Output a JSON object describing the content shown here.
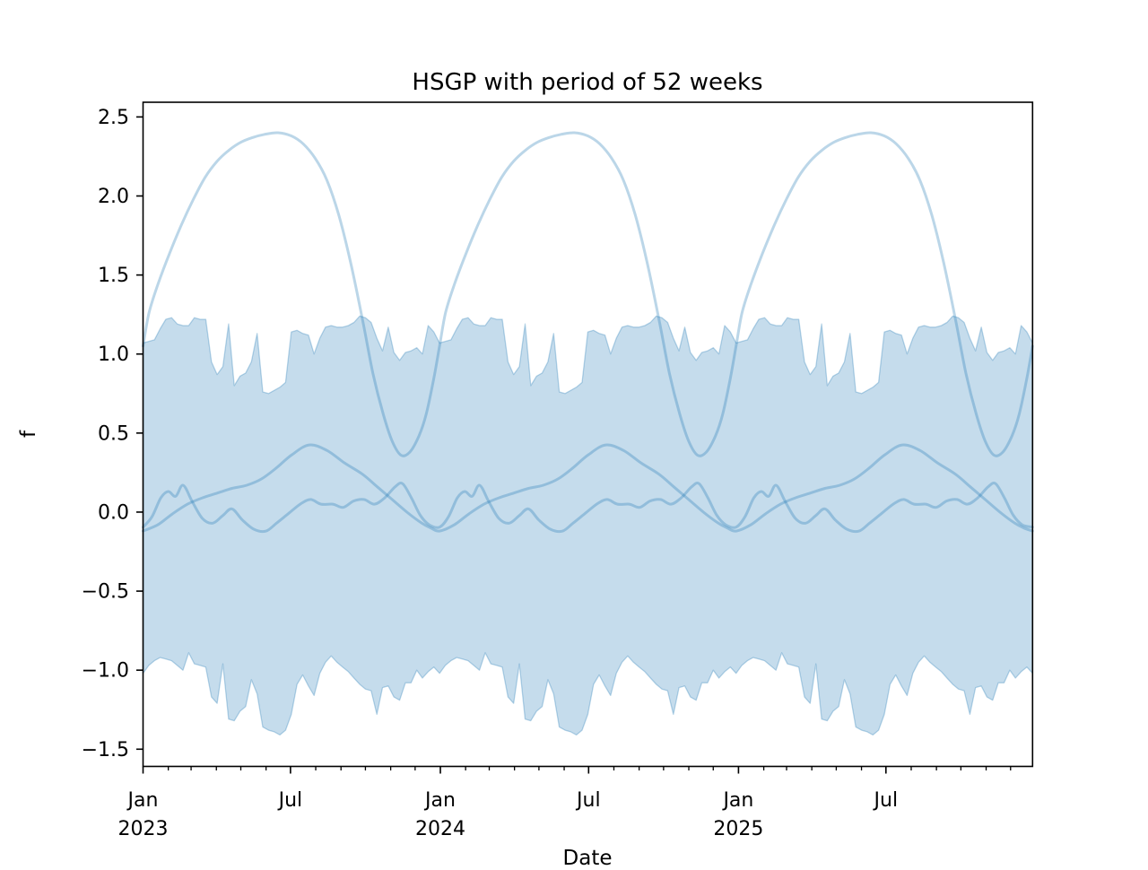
{
  "figure": {
    "title": "HSGP with period of 52 weeks",
    "xlabel": "Date",
    "ylabel": "f"
  },
  "chart_data": {
    "type": "line",
    "title": "HSGP with period of 52 weeks",
    "xlabel": "Date",
    "ylabel": "f",
    "grid": false,
    "legend": null,
    "period_weeks": 52,
    "period_years": 0.99726,
    "x_axis": {
      "kind": "date",
      "range": "Jan 2023 to Dec 2025",
      "xlim_years": [
        0,
        2.9918
      ],
      "major_ticks": [
        {
          "t": 0.0,
          "month": "Jan",
          "year": "2023"
        },
        {
          "t": 0.4959,
          "month": "Jul",
          "year": ""
        },
        {
          "t": 1.0,
          "month": "Jan",
          "year": "2024"
        },
        {
          "t": 1.4986,
          "month": "Jul",
          "year": ""
        },
        {
          "t": 2.0027,
          "month": "Jan",
          "year": "2025"
        },
        {
          "t": 2.4986,
          "month": "Jul",
          "year": ""
        }
      ],
      "minor_ticks": [
        0.0849,
        0.1616,
        0.2466,
        0.3288,
        0.4137,
        0.5808,
        0.6658,
        0.7479,
        0.8329,
        0.9151,
        1.0849,
        1.1644,
        1.2493,
        1.3315,
        1.4164,
        1.5836,
        1.6685,
        1.7507,
        1.8356,
        1.9178,
        2.0877,
        2.1644,
        2.2493,
        2.3315,
        2.4164,
        2.5836,
        2.6685,
        2.7507,
        2.8356,
        2.9178
      ]
    },
    "y_axis": {
      "ylim": [
        -1.609,
        2.593
      ],
      "ticks": [
        {
          "v": 2.5,
          "label": "2.5"
        },
        {
          "v": 2.0,
          "label": "2.0"
        },
        {
          "v": 1.5,
          "label": "1.5"
        },
        {
          "v": 1.0,
          "label": "1.0"
        },
        {
          "v": 0.5,
          "label": "0.5"
        },
        {
          "v": 0.0,
          "label": "0.0"
        },
        {
          "v": -0.5,
          "label": "−0.5"
        },
        {
          "v": -1.0,
          "label": "−1.0"
        },
        {
          "v": -1.5,
          "label": "−1.5"
        }
      ]
    },
    "band": {
      "name": "credible-band-weekly",
      "sampling": "weekly, repeats each 52-week period for 3 years",
      "top": [
        1.07,
        1.08,
        1.09,
        1.16,
        1.22,
        1.23,
        1.19,
        1.18,
        1.18,
        1.23,
        1.22,
        1.22,
        0.95,
        0.87,
        0.92,
        1.19,
        0.8,
        0.86,
        0.88,
        0.95,
        1.13,
        0.76,
        0.75,
        0.77,
        0.79,
        0.82,
        1.14,
        1.15,
        1.13,
        1.12,
        1.0,
        1.1,
        1.17,
        1.18,
        1.17,
        1.17,
        1.18,
        1.2,
        1.24,
        1.23,
        1.2,
        1.1,
        1.02,
        1.17,
        1.01,
        0.96,
        1.01,
        1.02,
        1.04,
        1.0,
        1.18,
        1.14
      ],
      "bottom": [
        -1.02,
        -0.97,
        -0.94,
        -0.92,
        -0.93,
        -0.94,
        -0.97,
        -1.0,
        -0.89,
        -0.96,
        -0.97,
        -0.98,
        -1.17,
        -1.21,
        -0.96,
        -1.31,
        -1.32,
        -1.26,
        -1.23,
        -1.06,
        -1.15,
        -1.36,
        -1.38,
        -1.39,
        -1.41,
        -1.38,
        -1.28,
        -1.09,
        -1.03,
        -1.1,
        -1.16,
        -1.02,
        -0.95,
        -0.91,
        -0.95,
        -0.98,
        -1.01,
        -1.05,
        -1.09,
        -1.12,
        -1.13,
        -1.28,
        -1.11,
        -1.1,
        -1.17,
        -1.19,
        -1.08,
        -1.08,
        -1.0,
        -1.05,
        -1.01,
        -0.98
      ]
    },
    "series": [
      {
        "name": "sample-large-amplitude",
        "peak": {
          "t_of_year": 0.455,
          "v": 2.4
        },
        "trough": {
          "t_of_year": 0.87,
          "v": 0.36
        },
        "t": [
          0,
          0.02,
          0.05,
          0.09,
          0.13,
          0.17,
          0.21,
          0.25,
          0.29,
          0.33,
          0.37,
          0.41,
          0.455,
          0.5,
          0.54,
          0.58,
          0.62,
          0.66,
          0.7,
          0.74,
          0.775,
          0.81,
          0.84,
          0.87,
          0.9,
          0.93,
          0.955,
          0.98,
          1.0
        ],
        "v": [
          1.05,
          1.26,
          1.44,
          1.64,
          1.82,
          1.98,
          2.12,
          2.22,
          2.29,
          2.34,
          2.37,
          2.39,
          2.4,
          2.38,
          2.33,
          2.24,
          2.1,
          1.88,
          1.58,
          1.22,
          0.88,
          0.62,
          0.45,
          0.36,
          0.38,
          0.48,
          0.62,
          0.84,
          1.05
        ]
      },
      {
        "name": "sample-medium-amplitude",
        "peak": {
          "t_of_year": 0.56,
          "v": 0.425
        },
        "trough": {
          "t_of_year": 0.0,
          "v": -0.12
        },
        "t": [
          0,
          0.05,
          0.1,
          0.15,
          0.2,
          0.25,
          0.3,
          0.35,
          0.4,
          0.45,
          0.5,
          0.56,
          0.62,
          0.68,
          0.74,
          0.79,
          0.84,
          0.89,
          0.94,
          0.97,
          1.0
        ],
        "v": [
          -0.12,
          -0.08,
          -0.01,
          0.05,
          0.09,
          0.12,
          0.15,
          0.17,
          0.21,
          0.28,
          0.36,
          0.425,
          0.39,
          0.31,
          0.24,
          0.16,
          0.08,
          0.0,
          -0.07,
          -0.1,
          -0.12
        ]
      },
      {
        "name": "sample-small-wiggly",
        "t": [
          0,
          0.03,
          0.06,
          0.085,
          0.11,
          0.135,
          0.165,
          0.2,
          0.235,
          0.27,
          0.3,
          0.335,
          0.375,
          0.415,
          0.45,
          0.49,
          0.53,
          0.565,
          0.6,
          0.64,
          0.675,
          0.71,
          0.745,
          0.78,
          0.815,
          0.85,
          0.875,
          0.905,
          0.935,
          0.965,
          1.0
        ],
        "v": [
          -0.095,
          -0.03,
          0.09,
          0.13,
          0.1,
          0.17,
          0.07,
          -0.04,
          -0.07,
          -0.02,
          0.02,
          -0.05,
          -0.11,
          -0.12,
          -0.07,
          -0.01,
          0.05,
          0.08,
          0.05,
          0.05,
          0.03,
          0.07,
          0.08,
          0.05,
          0.09,
          0.16,
          0.18,
          0.09,
          -0.02,
          -0.08,
          -0.095
        ]
      }
    ],
    "colors": {
      "base_blue": "#1f77b4",
      "line_alpha": 0.3,
      "band_fill_alpha": 0.26,
      "band_edge_alpha": 0.3,
      "axis": "#000000",
      "background": "#ffffff"
    }
  }
}
